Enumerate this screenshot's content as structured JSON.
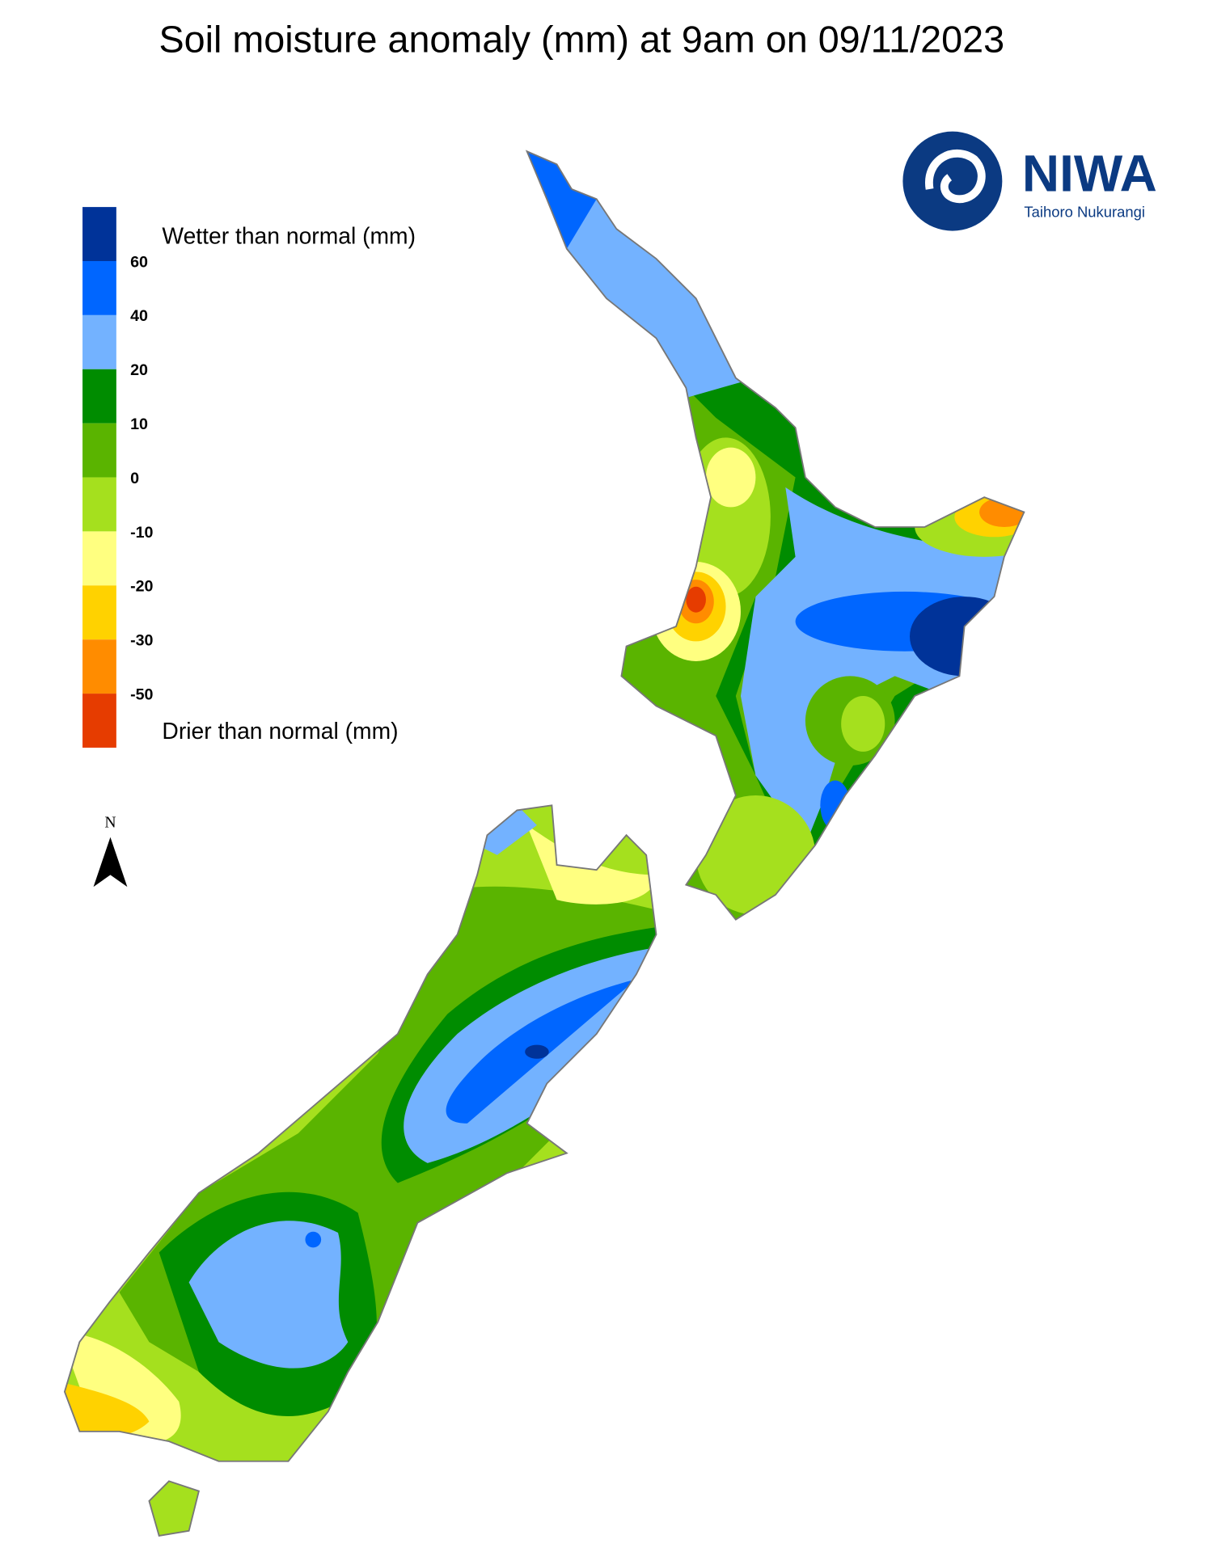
{
  "header": {
    "title": "Soil moisture anomaly (mm) at 9am on 09/11/2023"
  },
  "logo": {
    "name": "NIWA",
    "subtitle": "Taihoro Nukurangi"
  },
  "legend": {
    "upper_label": "Wetter than normal (mm)",
    "lower_label": "Drier than normal (mm)",
    "ticks": [
      60,
      40,
      20,
      10,
      0,
      -10,
      -20,
      -30,
      -50
    ],
    "colors": [
      "#003399",
      "#0066ff",
      "#73b2ff",
      "#008c00",
      "#5ab400",
      "#a5e01e",
      "#ffff80",
      "#ffd200",
      "#ff8c00",
      "#e63c00"
    ]
  },
  "north_arrow": {
    "label": "N"
  }
}
